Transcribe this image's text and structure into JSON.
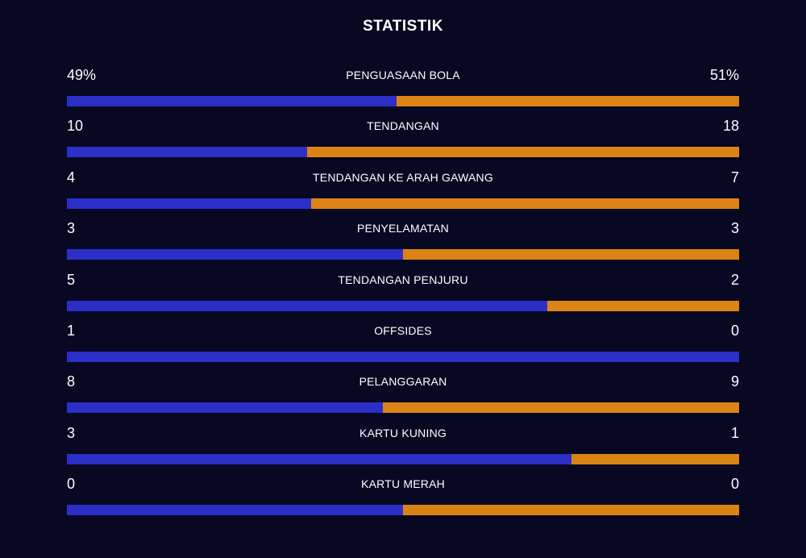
{
  "title": "STATISTIK",
  "colors": {
    "background": "#080823",
    "home": "#2b2fc7",
    "away": "#dc8316"
  },
  "stats": [
    {
      "label": "PENGUASAAN BOLA",
      "home": "49%",
      "away": "51%",
      "home_value": 49,
      "away_value": 51
    },
    {
      "label": "TENDANGAN",
      "home": "10",
      "away": "18",
      "home_value": 10,
      "away_value": 18
    },
    {
      "label": "TENDANGAN KE ARAH GAWANG",
      "home": "4",
      "away": "7",
      "home_value": 4,
      "away_value": 7
    },
    {
      "label": "PENYELAMATAN",
      "home": "3",
      "away": "3",
      "home_value": 3,
      "away_value": 3
    },
    {
      "label": "TENDANGAN PENJURU",
      "home": "5",
      "away": "2",
      "home_value": 5,
      "away_value": 2
    },
    {
      "label": "OFFSIDES",
      "home": "1",
      "away": "0",
      "home_value": 1,
      "away_value": 0
    },
    {
      "label": "PELANGGARAN",
      "home": "8",
      "away": "9",
      "home_value": 8,
      "away_value": 9
    },
    {
      "label": "KARTU KUNING",
      "home": "3",
      "away": "1",
      "home_value": 3,
      "away_value": 1
    },
    {
      "label": "KARTU MERAH",
      "home": "0",
      "away": "0",
      "home_value": 0,
      "away_value": 0
    }
  ]
}
